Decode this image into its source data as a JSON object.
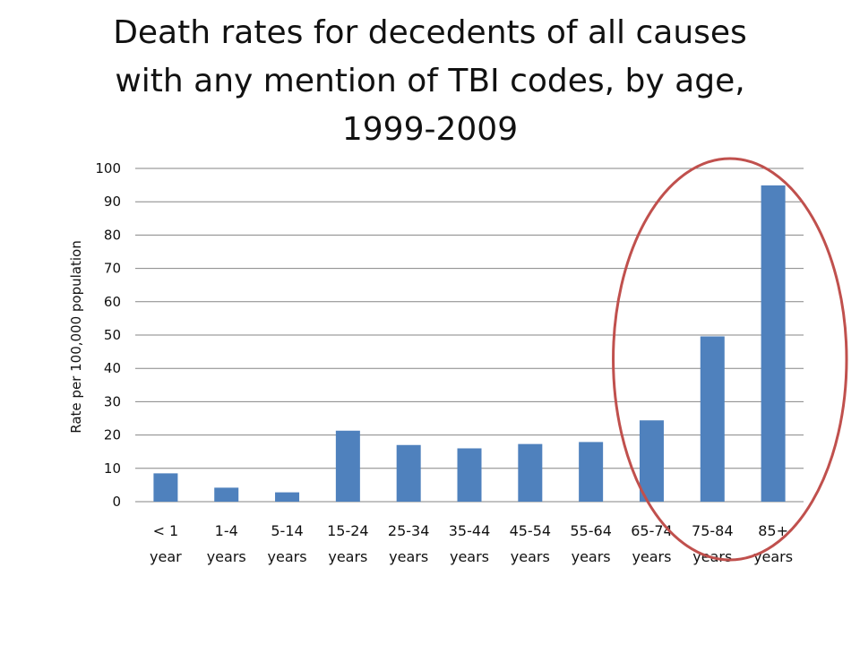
{
  "slide": {
    "title_lines": [
      "Death rates for decedents of all causes",
      "with any mention of TBI codes, by age,",
      "1999-2009"
    ]
  },
  "colors": {
    "bar": "#4F81BD",
    "highlight_circle": "#C0504D",
    "gridline": "#868686"
  },
  "chart_data": {
    "type": "bar",
    "title": "Death rates for decedents of all causes with any mention of TBI codes, by age, 1999-2009",
    "categories": [
      [
        "< 1",
        "year"
      ],
      [
        "1-4",
        "years"
      ],
      [
        "5-14",
        "years"
      ],
      [
        "15-24",
        "years"
      ],
      [
        "25-34",
        "years"
      ],
      [
        "35-44",
        "years"
      ],
      [
        "45-54",
        "years"
      ],
      [
        "55-64",
        "years"
      ],
      [
        "65-74",
        "years"
      ],
      [
        "75-84",
        "years"
      ],
      [
        "85+",
        "years"
      ]
    ],
    "values": [
      8.5,
      4.2,
      2.8,
      21.3,
      17.0,
      16.0,
      17.3,
      17.9,
      24.4,
      49.6,
      94.9
    ],
    "xlabel": "",
    "ylabel": "Rate per 100,000 population",
    "ylim": [
      0,
      100
    ],
    "yticks": [
      0,
      10,
      20,
      30,
      40,
      50,
      60,
      70,
      80,
      90,
      100
    ],
    "grid": true,
    "legend": "none",
    "annotations": [
      {
        "type": "ellipse",
        "label": "highlight",
        "categories": [
          "65-74 years",
          "75-84 years",
          "85+ years"
        ]
      }
    ]
  }
}
